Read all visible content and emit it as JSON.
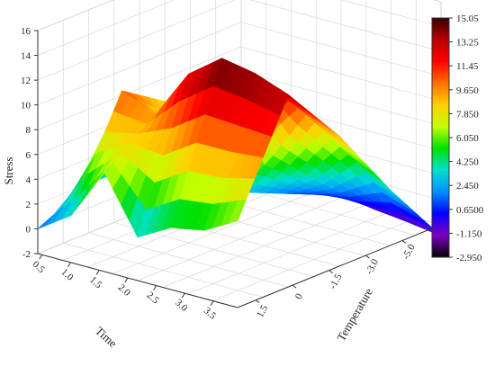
{
  "chart_data": {
    "type": "surface3d",
    "title": "",
    "xlabel": "Time",
    "ylabel": "Temperature",
    "zlabel": "Stress",
    "x_ticks": [
      "0.5",
      "1.0",
      "1.5",
      "2.0",
      "2.5",
      "3.0",
      "3.5"
    ],
    "y_ticks": [
      "1.5",
      "0",
      "-1.5",
      "-3.0",
      "-5.0"
    ],
    "z_ticks": [
      "-2",
      "0",
      "2",
      "4",
      "6",
      "8",
      "10",
      "12",
      "14",
      "16"
    ],
    "zlim": [
      -2,
      16
    ],
    "grid": true,
    "colorbar": {
      "ticks": [
        "15.05",
        "13.25",
        "11.45",
        "9.650",
        "7.850",
        "6.050",
        "4.250",
        "2.450",
        "0.6500",
        "-1.150",
        "-2.950"
      ],
      "range": [
        -2.95,
        15.05
      ],
      "colors": [
        "#3a0000",
        "#b80000",
        "#ff0000",
        "#ff7000",
        "#ffd000",
        "#c0ff00",
        "#00e000",
        "#00e0d0",
        "#0090ff",
        "#0000ff",
        "#8000c0",
        "#000000"
      ]
    },
    "time_values": [
      0.5,
      1.0,
      1.5,
      2.0,
      2.5,
      3.0,
      3.5
    ],
    "temperature_values": [
      1.5,
      0,
      -1.5,
      -3.0,
      -5.0
    ],
    "stress_values": [
      [
        0.0,
        1.8,
        6.0,
        1.5,
        3.0,
        3.5,
        5.0
      ],
      [
        2.0,
        10.2,
        9.0,
        13.0,
        15.0,
        14.5,
        13.5
      ],
      [
        1.8,
        7.5,
        3.0,
        1.8,
        5.5,
        9.5,
        8.5
      ],
      [
        1.0,
        3.5,
        -0.5,
        0.0,
        1.5,
        4.0,
        2.5
      ],
      [
        0.0,
        -1.2,
        -1.5,
        -1.8,
        -2.2,
        -2.5,
        -2.9
      ]
    ]
  }
}
